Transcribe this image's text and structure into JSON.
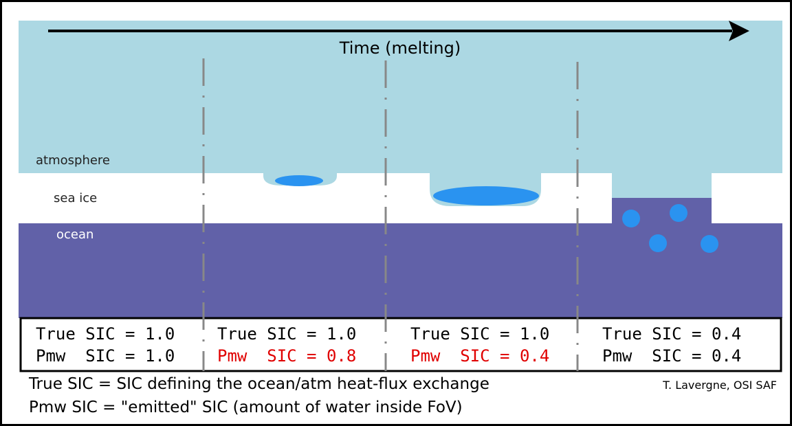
{
  "diagram": {
    "time_label": "Time (melting)",
    "layers": [
      "atmosphere",
      "sea ice",
      "ocean"
    ],
    "table": {
      "cells": [
        {
          "true_sic": "True SIC = 1.0",
          "pmw_sic": "Pmw  SIC = 1.0",
          "pmw_color": "#000000"
        },
        {
          "true_sic": "True SIC = 1.0",
          "pmw_sic": "Pmw  SIC = 0.8",
          "pmw_color": "#e00000"
        },
        {
          "true_sic": "True SIC = 1.0",
          "pmw_sic": "Pmw  SIC = 0.4",
          "pmw_color": "#e00000"
        },
        {
          "true_sic": "True SIC = 0.4",
          "pmw_sic": "Pmw  SIC = 0.4",
          "pmw_color": "#000000"
        }
      ]
    },
    "legend": [
      "True  SIC  = SIC defining the ocean/atm heat-flux exchange",
      "Pmw SIC  = \"emitted\" SIC (amount of water inside FoV)"
    ],
    "credit": "T. Lavergne, OSI SAF"
  }
}
